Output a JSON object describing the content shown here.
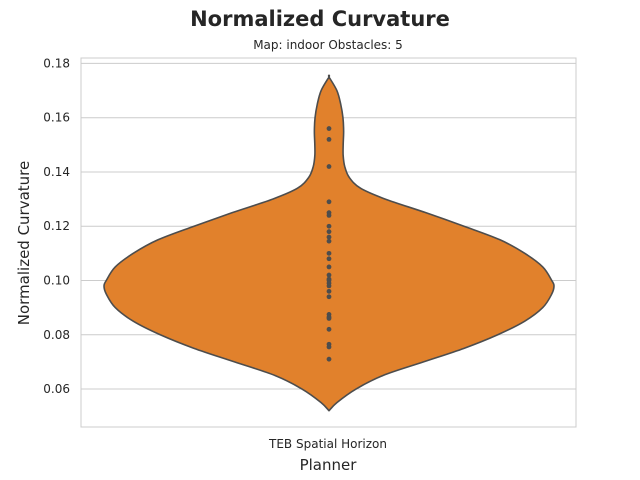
{
  "chart_data": {
    "type": "violin",
    "title": "Normalized Curvature",
    "subtitle": "Map: indoor Obstacles: 5",
    "xlabel": "Planner",
    "ylabel": "Normalized Curvature",
    "categories": [
      "TEB Spatial Horizon"
    ],
    "ylim": [
      0.046,
      0.182
    ],
    "yticks": [
      0.06,
      0.08,
      0.1,
      0.12,
      0.14,
      0.16,
      0.18
    ],
    "ytick_labels": [
      "0.06",
      "0.08",
      "0.10",
      "0.12",
      "0.14",
      "0.16",
      "0.18"
    ],
    "grid": true,
    "colors": {
      "violin_fill": "#e1812c",
      "violin_edge": "#4d4d4d",
      "points": "#4d4d4d",
      "grid": "#cccccc",
      "frame": "#cccccc"
    },
    "series": [
      {
        "category": "TEB Spatial Horizon",
        "values": [
          0.156,
          0.152,
          0.142,
          0.129,
          0.125,
          0.124,
          0.12,
          0.118,
          0.116,
          0.1145,
          0.11,
          0.108,
          0.105,
          0.102,
          0.1005,
          0.1,
          0.099,
          0.098,
          0.096,
          0.094,
          0.0875,
          0.0865,
          0.086,
          0.082,
          0.0765,
          0.0755,
          0.071
        ],
        "density_profile": [
          [
            0.052,
            0.0
          ],
          [
            0.055,
            0.035
          ],
          [
            0.06,
            0.12
          ],
          [
            0.065,
            0.24
          ],
          [
            0.07,
            0.42
          ],
          [
            0.075,
            0.6
          ],
          [
            0.08,
            0.75
          ],
          [
            0.085,
            0.87
          ],
          [
            0.09,
            0.95
          ],
          [
            0.095,
            0.99
          ],
          [
            0.098,
            1.0
          ],
          [
            0.1,
            0.99
          ],
          [
            0.105,
            0.95
          ],
          [
            0.11,
            0.87
          ],
          [
            0.115,
            0.76
          ],
          [
            0.12,
            0.6
          ],
          [
            0.125,
            0.43
          ],
          [
            0.13,
            0.25
          ],
          [
            0.134,
            0.14
          ],
          [
            0.138,
            0.09
          ],
          [
            0.142,
            0.07
          ],
          [
            0.146,
            0.063
          ],
          [
            0.15,
            0.063
          ],
          [
            0.155,
            0.065
          ],
          [
            0.16,
            0.062
          ],
          [
            0.165,
            0.052
          ],
          [
            0.17,
            0.035
          ],
          [
            0.175,
            0.0
          ]
        ]
      }
    ]
  }
}
